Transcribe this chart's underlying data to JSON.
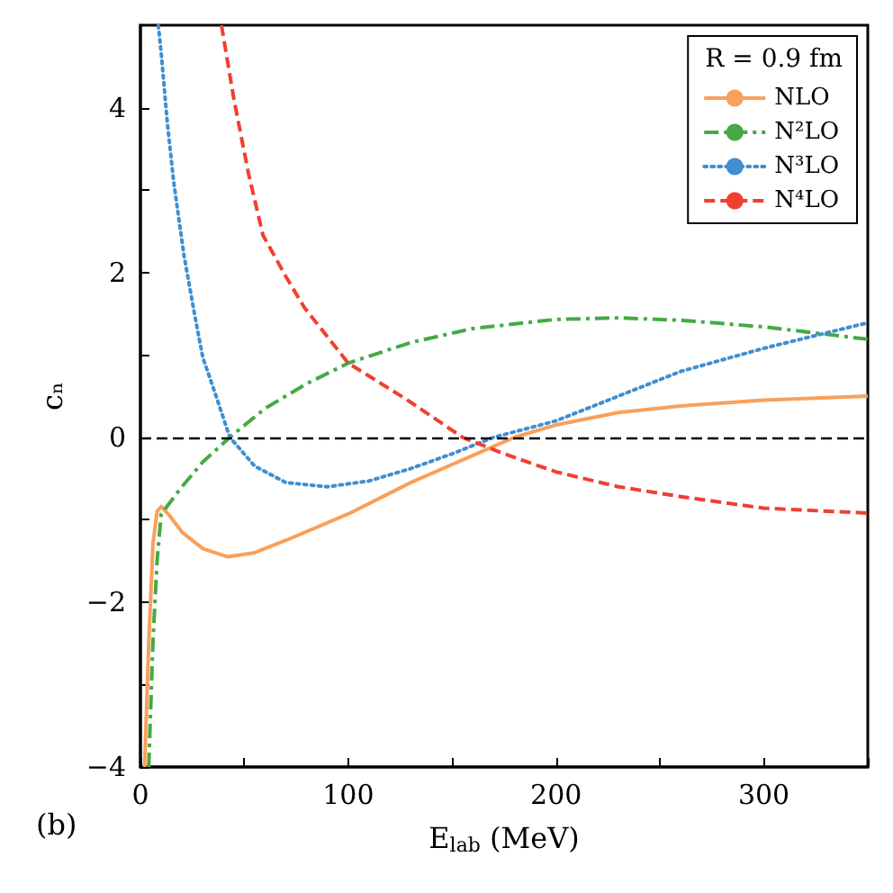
{
  "chart_data": {
    "type": "line",
    "xlabel": "E$_{lab}$ (MeV)",
    "ylabel": "cₙ",
    "legend_title": "R = 0.9 fm",
    "annotations": [
      "(b)"
    ],
    "xlim": [
      0,
      350
    ],
    "xticks": [
      0,
      {
        "value": 50,
        "label": null
      },
      100,
      {
        "value": 150,
        "label": null
      },
      200,
      {
        "value": 250,
        "label": null
      },
      300,
      {
        "value": 350,
        "label": null
      }
    ],
    "ylim": [
      -4,
      5
    ],
    "yticks": [
      -4,
      {
        "value": -3,
        "label": null
      },
      -2,
      {
        "value": -1,
        "label": null
      },
      0,
      {
        "value": 1,
        "label": null
      },
      2,
      {
        "value": 3,
        "label": null
      },
      4
    ],
    "grid": false,
    "legend": "top right",
    "marker": "none",
    "ref_lines": [
      {
        "axis": "y",
        "value": 0,
        "color": "#000000",
        "line_style": "dashed"
      }
    ],
    "series": [
      {
        "name": "NLO",
        "color": "#f9a05a",
        "line_style": "solid",
        "x": [
          2,
          4,
          6,
          8,
          10,
          14,
          20,
          30,
          42,
          55,
          70,
          100,
          130,
          160,
          180,
          200,
          230,
          260,
          300,
          350
        ],
        "values": [
          -4,
          -2.5,
          -1.3,
          -0.9,
          -0.84,
          -0.95,
          -1.15,
          -1.35,
          -1.45,
          -1.4,
          -1.25,
          -0.93,
          -0.55,
          -0.22,
          0,
          0.15,
          0.3,
          0.38,
          0.45,
          0.5
        ]
      },
      {
        "name": "N²LO",
        "color": "#44aa44",
        "line_style": "dashdot",
        "x": [
          4,
          6,
          8,
          10,
          20,
          30,
          43,
          60,
          80,
          100,
          130,
          160,
          200,
          230,
          260,
          300,
          350
        ],
        "values": [
          -4,
          -2.5,
          -1.5,
          -0.93,
          -0.6,
          -0.3,
          0,
          0.35,
          0.65,
          0.9,
          1.15,
          1.32,
          1.43,
          1.45,
          1.42,
          1.34,
          1.19
        ]
      },
      {
        "name": "N³LO",
        "color": "#3f8fd2",
        "line_style": "dotted",
        "x": [
          8.6,
          10,
          13,
          16,
          21,
          26,
          30,
          36,
          43,
          55,
          70,
          90,
          110,
          130,
          150,
          170,
          200,
          230,
          260,
          300,
          350
        ],
        "values": [
          5,
          4.66,
          3.8,
          3.1,
          2.2,
          1.5,
          0.97,
          0.53,
          0,
          -0.35,
          -0.55,
          -0.6,
          -0.53,
          -0.38,
          -0.2,
          0,
          0.2,
          0.5,
          0.8,
          1.08,
          1.39
        ]
      },
      {
        "name": "N⁴LO",
        "color": "#f0402f",
        "line_style": "dashed",
        "x": [
          39,
          45,
          52,
          59,
          70,
          79,
          100,
          128,
          155,
          175,
          200,
          230,
          260,
          300,
          350
        ],
        "values": [
          5,
          4.1,
          3.2,
          2.45,
          1.95,
          1.57,
          0.9,
          0.46,
          0,
          -0.2,
          -0.42,
          -0.6,
          -0.72,
          -0.86,
          -0.92
        ]
      }
    ]
  }
}
